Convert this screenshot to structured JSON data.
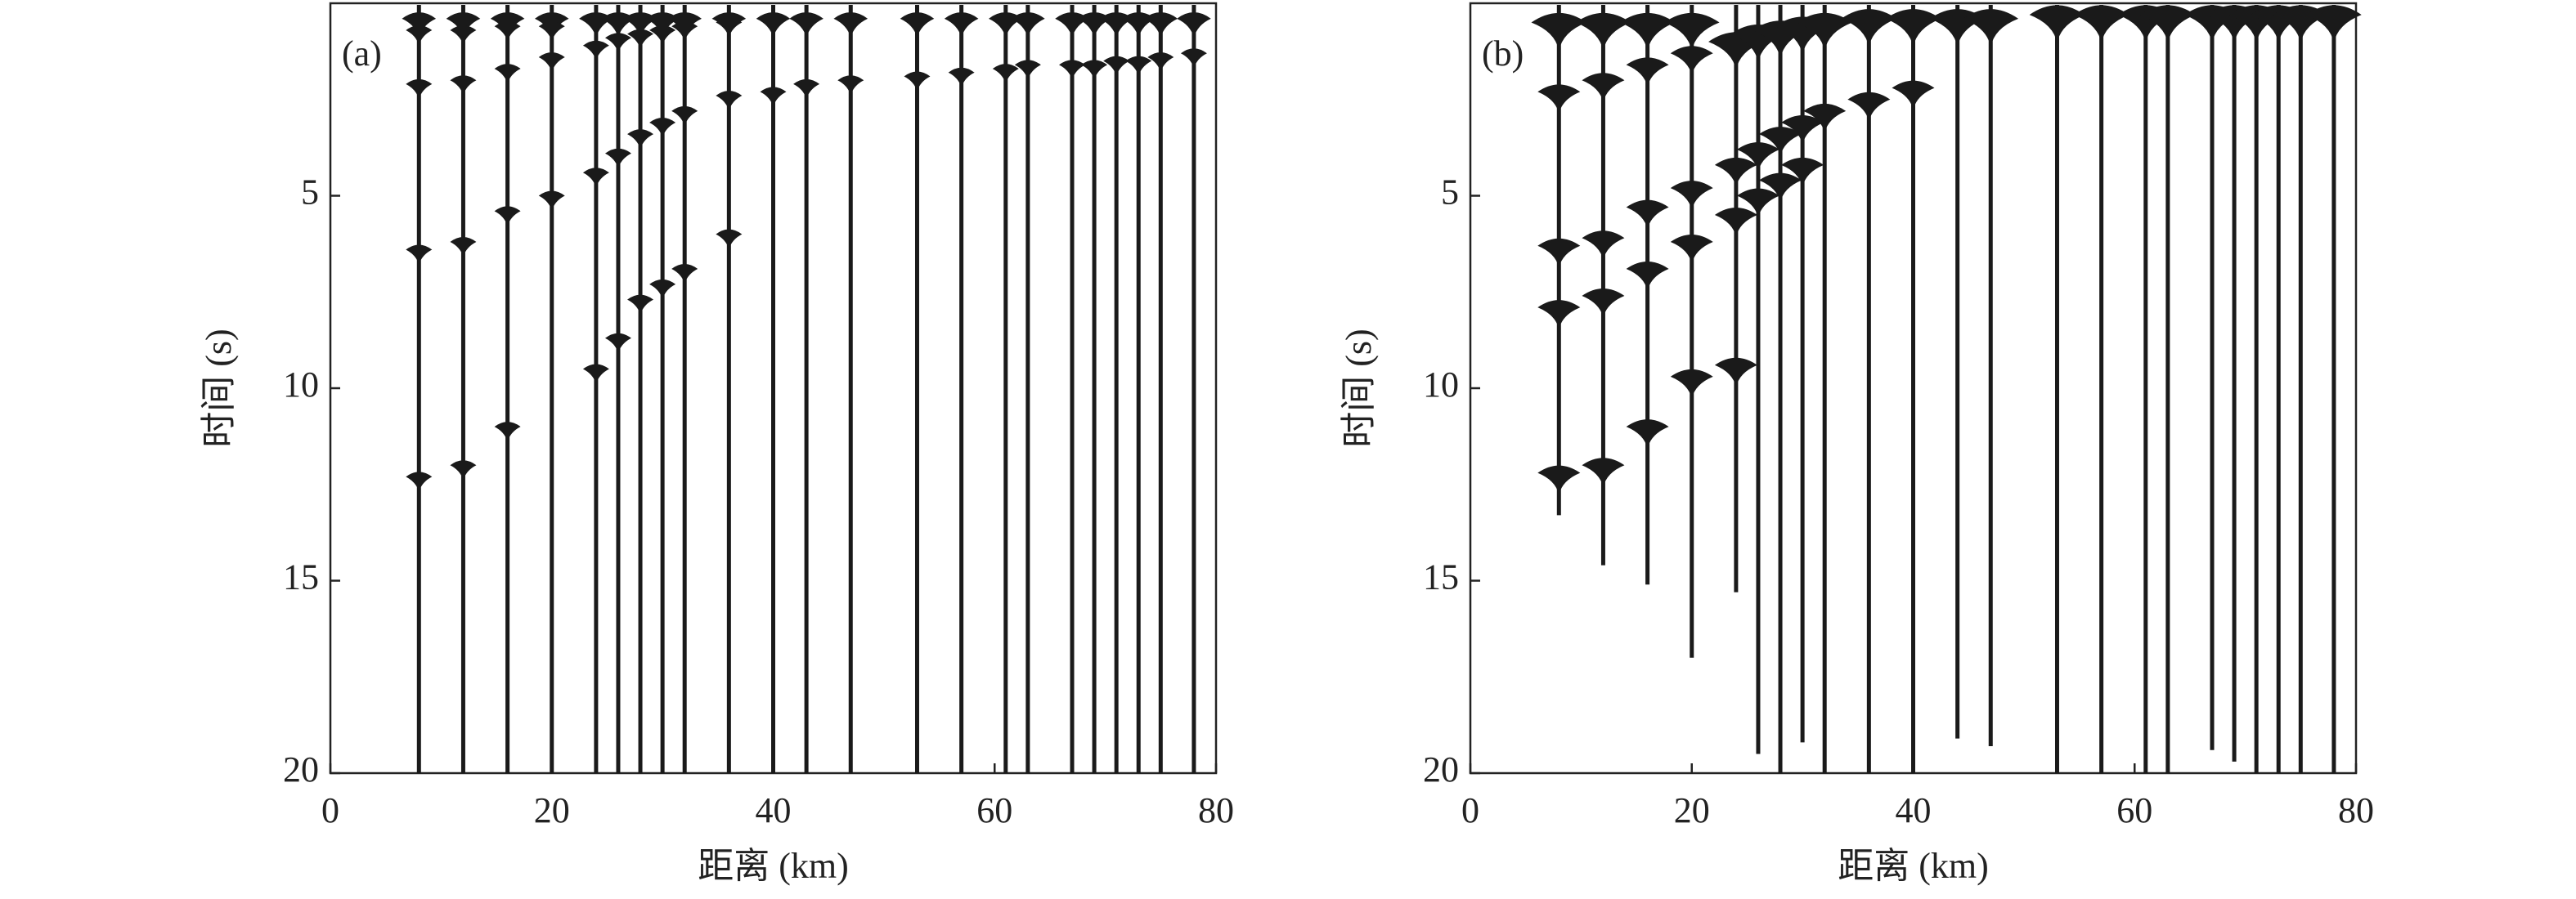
{
  "chart_data": [
    {
      "type": "wiggle",
      "label": "(a)",
      "x_label": "距离 (km)",
      "y_label": "时间 (s)",
      "xlim": [
        0,
        80
      ],
      "ylim": [
        20,
        0
      ],
      "xticks": [
        0,
        20,
        40,
        60,
        80
      ],
      "yticks": [
        5,
        10,
        15,
        20
      ],
      "color": "#1a1a1a",
      "traces": {
        "x": [
          8,
          12,
          16,
          20,
          24,
          26,
          28,
          30,
          32,
          36,
          40,
          43,
          47,
          53,
          57,
          61,
          63,
          67,
          69,
          71,
          73,
          75,
          78
        ],
        "end": [
          20,
          20,
          20,
          20,
          20,
          20,
          20,
          20,
          20,
          20,
          20,
          20,
          20,
          20,
          20,
          20,
          20,
          20,
          20,
          20,
          20,
          20,
          20
        ],
        "arrivals": [
          [
            0.4,
            0.7,
            2.1,
            6.4,
            12.3
          ],
          [
            0.4,
            0.7,
            2.0,
            6.2,
            12
          ],
          [
            0.4,
            0.6,
            1.7,
            5.4,
            11
          ],
          [
            0.4,
            0.6,
            1.4,
            5.0
          ],
          [
            0.4,
            1.1,
            4.4,
            9.5
          ],
          [
            0.4,
            0.9,
            3.9,
            8.7
          ],
          [
            0.4,
            0.8,
            3.4,
            7.7
          ],
          [
            0.4,
            0.7,
            3.1,
            7.3
          ],
          [
            0.4,
            0.6,
            2.8,
            6.9
          ],
          [
            0.4,
            0.5,
            2.4,
            6
          ],
          [
            0.4,
            2.3
          ],
          [
            0.4,
            2.1
          ],
          [
            0.4,
            2.0
          ],
          [
            0.4,
            1.9
          ],
          [
            0.4,
            1.8
          ],
          [
            0.4,
            1.7
          ],
          [
            0.4,
            1.6
          ],
          [
            0.4,
            1.6
          ],
          [
            0.4,
            1.6
          ],
          [
            0.4,
            1.5
          ],
          [
            0.4,
            1.5
          ],
          [
            0.4,
            1.4
          ],
          [
            0.4,
            1.3
          ]
        ]
      }
    },
    {
      "type": "wiggle",
      "label": "(b)",
      "x_label": "距离 (km)",
      "y_label": "时间 (s)",
      "xlim": [
        0,
        80
      ],
      "ylim": [
        20,
        0
      ],
      "xticks": [
        0,
        20,
        40,
        60,
        80
      ],
      "yticks": [
        5,
        10,
        15,
        20
      ],
      "color": "#1a1a1a",
      "traces": {
        "x": [
          8,
          12,
          16,
          20,
          24,
          26,
          28,
          30,
          32,
          36,
          40,
          44,
          47,
          53,
          57,
          61,
          63,
          67,
          69,
          71,
          73,
          75,
          78
        ],
        "end": [
          13.3,
          14.6,
          15.1,
          17,
          15.3,
          19.5,
          20,
          19.2,
          20,
          20,
          20,
          19.1,
          19.3,
          20,
          20,
          20,
          20,
          19.4,
          19.7,
          20,
          20,
          20,
          20
        ],
        "arrivals": [
          [
            0.5,
            2.3,
            6.3,
            7.9,
            12.2
          ],
          [
            0.5,
            2.0,
            6.1,
            7.6,
            12
          ],
          [
            0.5,
            1.6,
            5.3,
            6.9,
            11
          ],
          [
            0.5,
            1.3,
            4.8,
            6.2,
            9.7
          ],
          [
            1.0,
            4.2,
            5.5,
            9.4
          ],
          [
            0.8,
            3.8,
            5.0
          ],
          [
            0.7,
            3.4,
            4.6
          ],
          [
            0.6,
            3.1,
            4.2
          ],
          [
            0.5,
            2.8
          ],
          [
            0.4,
            2.5
          ],
          [
            0.4,
            2.2
          ],
          [
            0.4
          ],
          [
            0.4
          ],
          [
            0.3
          ],
          [
            0.3
          ],
          [
            0.3
          ],
          [
            0.3
          ],
          [
            0.3
          ],
          [
            0.3
          ],
          [
            0.3
          ],
          [
            0.3
          ],
          [
            0.3
          ],
          [
            0.3
          ]
        ]
      }
    }
  ]
}
